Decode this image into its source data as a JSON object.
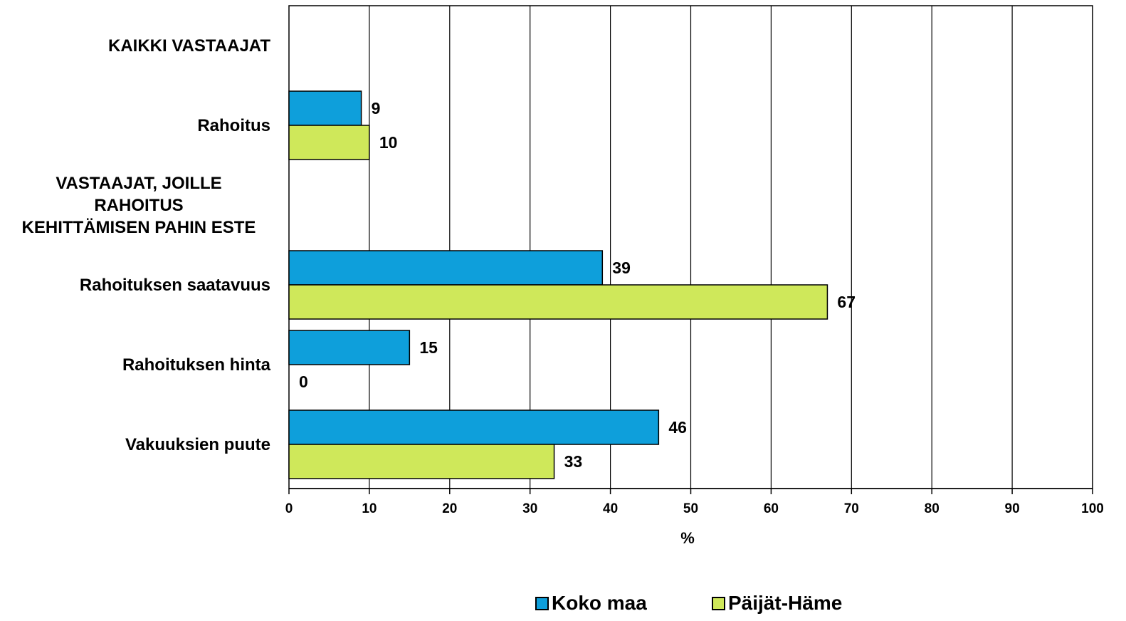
{
  "chart_data": {
    "type": "bar",
    "orientation": "horizontal",
    "categories": [
      "KAIKKI VASTAAJAT",
      "Rahoitus",
      "VASTAAJAT, JOILLE RAHOITUS KEHITTÄMISEN PAHIN ESTE",
      "Rahoituksen saatavuus",
      "Rahoituksen hinta",
      "Vakuuksien puute"
    ],
    "category_display": [
      "KAIKKI VASTAAJAT",
      "Rahoitus",
      "VASTAAJAT, JOILLE\nRAHOITUS\nKEHITTÄMISEN PAHIN ESTE",
      "Rahoituksen saatavuus",
      "Rahoituksen hinta",
      "Vakuuksien puute"
    ],
    "series": [
      {
        "name": "Koko maa",
        "color": "#0e9fdb",
        "values": [
          null,
          9,
          null,
          39,
          15,
          46
        ]
      },
      {
        "name": "Päijät-Häme",
        "color": "#cfe85a",
        "values": [
          null,
          10,
          null,
          67,
          0,
          33
        ]
      }
    ],
    "xlabel": "%",
    "ylabel": "",
    "xlim": [
      0,
      100
    ],
    "xticks": [
      0,
      10,
      20,
      30,
      40,
      50,
      60,
      70,
      80,
      90,
      100
    ],
    "grid": "vertical",
    "legend_position": "bottom",
    "data_labels": true
  }
}
